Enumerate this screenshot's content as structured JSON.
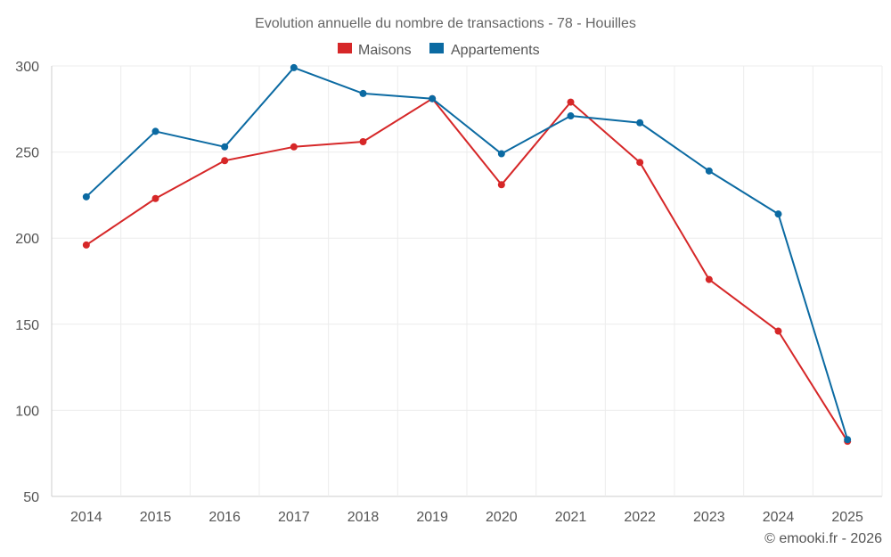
{
  "chart_data": {
    "type": "line",
    "title": "Evolution annuelle du nombre de transactions - 78 - Houilles",
    "categories": [
      "2014",
      "2015",
      "2016",
      "2017",
      "2018",
      "2019",
      "2020",
      "2021",
      "2022",
      "2023",
      "2024",
      "2025"
    ],
    "series": [
      {
        "name": "Maisons",
        "color": "#d62728",
        "values": [
          196,
          223,
          245,
          253,
          256,
          281,
          231,
          279,
          244,
          176,
          146,
          82
        ]
      },
      {
        "name": "Appartements",
        "color": "#0b6aa2",
        "values": [
          224,
          262,
          253,
          299,
          284,
          281,
          249,
          271,
          267,
          239,
          214,
          83
        ]
      }
    ],
    "ylim": [
      50,
      300
    ],
    "yticks": [
      50,
      100,
      150,
      200,
      250,
      300
    ],
    "xlabel": "",
    "ylabel": "",
    "grid": true,
    "legend_position": "top-center"
  },
  "credit": "© emooki.fr - 2026"
}
